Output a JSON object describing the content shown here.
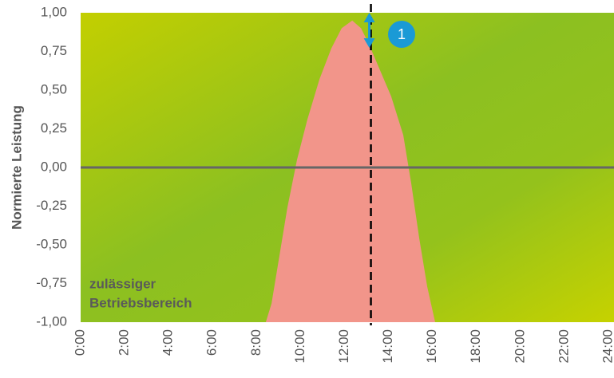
{
  "chart_data": {
    "type": "area",
    "ylabel": "Normierte Leistung",
    "x": [
      8.42,
      8.68,
      9.04,
      9.4,
      9.84,
      10.31,
      10.86,
      11.4,
      11.87,
      12.35,
      12.75,
      13.1,
      13.58,
      14.12,
      14.67,
      15.03,
      15.4,
      15.76,
      16.12
    ],
    "values": [
      -1,
      -0.88,
      -0.57,
      -0.26,
      0.05,
      0.31,
      0.57,
      0.77,
      0.9,
      0.95,
      0.9,
      0.8,
      0.64,
      0.46,
      0.21,
      -0.1,
      -0.46,
      -0.77,
      -1
    ],
    "color": "#f2958a",
    "xlim": [
      0,
      24
    ],
    "ylim": [
      -1,
      1
    ],
    "xticks": [
      {
        "value": 0,
        "label": "0:00"
      },
      {
        "value": 2,
        "label": "2:00"
      },
      {
        "value": 4,
        "label": "4:00"
      },
      {
        "value": 6,
        "label": "6:00"
      },
      {
        "value": 8,
        "label": "8:00"
      },
      {
        "value": 10,
        "label": "10:00"
      },
      {
        "value": 12,
        "label": "12:00"
      },
      {
        "value": 14,
        "label": "14:00"
      },
      {
        "value": 16,
        "label": "16:00"
      },
      {
        "value": 18,
        "label": "18:00"
      },
      {
        "value": 20,
        "label": "20:00"
      },
      {
        "value": 22,
        "label": "22:00"
      },
      {
        "value": 24,
        "label": "24:00"
      }
    ],
    "yticks": [
      {
        "value": 1,
        "label": "1,00"
      },
      {
        "value": 0.75,
        "label": "0,75"
      },
      {
        "value": 0.5,
        "label": "0,50"
      },
      {
        "value": 0.25,
        "label": "0,25"
      },
      {
        "value": 0,
        "label": "0,00"
      },
      {
        "value": -0.25,
        "label": "-0,25"
      },
      {
        "value": -0.5,
        "label": "-0,50"
      },
      {
        "value": -0.75,
        "label": "-0,75"
      },
      {
        "value": -1,
        "label": "-1,00"
      }
    ],
    "zero_line_color": "#666666",
    "marker_x": 13.2,
    "marker_label": "1",
    "marker_color": "#1a9ad6",
    "annotation": [
      "zulässiger",
      "Betriebsbereich"
    ]
  }
}
